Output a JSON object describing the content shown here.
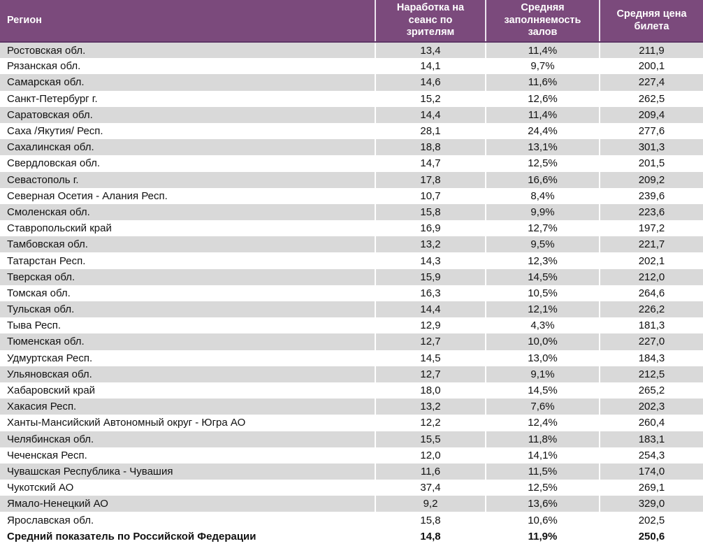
{
  "table": {
    "columns": [
      "Регион",
      "Наработка на сеанс по зрителям",
      "Средняя заполняемость залов",
      "Средняя цена билета"
    ],
    "rows": [
      [
        "Ростовская обл.",
        "13,4",
        "11,4%",
        "211,9"
      ],
      [
        "Рязанская обл.",
        "14,1",
        "9,7%",
        "200,1"
      ],
      [
        "Самарская обл.",
        "14,6",
        "11,6%",
        "227,4"
      ],
      [
        "Санкт-Петербург г.",
        "15,2",
        "12,6%",
        "262,5"
      ],
      [
        "Саратовская обл.",
        "14,4",
        "11,4%",
        "209,4"
      ],
      [
        "Саха /Якутия/ Респ.",
        "28,1",
        "24,4%",
        "277,6"
      ],
      [
        "Сахалинская обл.",
        "18,8",
        "13,1%",
        "301,3"
      ],
      [
        "Свердловская обл.",
        "14,7",
        "12,5%",
        "201,5"
      ],
      [
        "Севастополь г.",
        "17,8",
        "16,6%",
        "209,2"
      ],
      [
        "Северная Осетия - Алания Респ.",
        "10,7",
        "8,4%",
        "239,6"
      ],
      [
        "Смоленская обл.",
        "15,8",
        "9,9%",
        "223,6"
      ],
      [
        "Ставропольский край",
        "16,9",
        "12,7%",
        "197,2"
      ],
      [
        "Тамбовская обл.",
        "13,2",
        "9,5%",
        "221,7"
      ],
      [
        "Татарстан Респ.",
        "14,3",
        "12,3%",
        "202,1"
      ],
      [
        "Тверская обл.",
        "15,9",
        "14,5%",
        "212,0"
      ],
      [
        "Томская обл.",
        "16,3",
        "10,5%",
        "264,6"
      ],
      [
        "Тульская обл.",
        "14,4",
        "12,1%",
        "226,2"
      ],
      [
        "Тыва Респ.",
        "12,9",
        "4,3%",
        "181,3"
      ],
      [
        "Тюменская обл.",
        "12,7",
        "10,0%",
        "227,0"
      ],
      [
        "Удмуртская Респ.",
        "14,5",
        "13,0%",
        "184,3"
      ],
      [
        "Ульяновская обл.",
        "12,7",
        "9,1%",
        "212,5"
      ],
      [
        "Хабаровский край",
        "18,0",
        "14,5%",
        "265,2"
      ],
      [
        "Хакасия Респ.",
        "13,2",
        "7,6%",
        "202,3"
      ],
      [
        "Ханты-Мансийский Автономный округ - Югра АО",
        "12,2",
        "12,4%",
        "260,4"
      ],
      [
        "Челябинская обл.",
        "15,5",
        "11,8%",
        "183,1"
      ],
      [
        "Чеченская Респ.",
        "12,0",
        "14,1%",
        "254,3"
      ],
      [
        "Чувашская Республика - Чувашия",
        "11,6",
        "11,5%",
        "174,0"
      ],
      [
        "Чукотский АО",
        "37,4",
        "12,5%",
        "269,1"
      ],
      [
        "Ямало-Ненецкий АО",
        "9,2",
        "13,6%",
        "329,0"
      ],
      [
        "Ярославская обл.",
        "15,8",
        "10,6%",
        "202,5"
      ]
    ],
    "total_row": [
      "Средний показатель по Российской Федерации",
      "14,8",
      "11,9%",
      "250,6"
    ],
    "colors": {
      "header_bg": "#7B4A7C",
      "header_text": "#FFFFFF",
      "header_divider": "#EDE4EE",
      "header_border_bottom": "#5E3766",
      "alt_row_bg": "#D9D9D9",
      "row_bg": "#FFFFFF",
      "body_text": "#111111"
    }
  }
}
